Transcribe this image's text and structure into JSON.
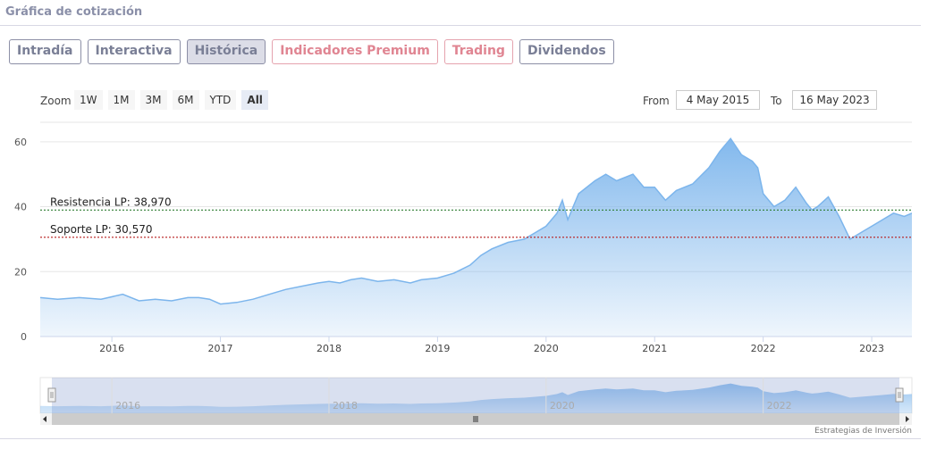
{
  "header": {
    "title": "Gráfica de cotización"
  },
  "tabs": [
    {
      "label": "Intradía",
      "style": "normal"
    },
    {
      "label": "Interactiva",
      "style": "normal"
    },
    {
      "label": "Histórica",
      "style": "active"
    },
    {
      "label": "Indicadores Premium",
      "style": "premium"
    },
    {
      "label": "Trading",
      "style": "premium"
    },
    {
      "label": "Dividendos",
      "style": "normal"
    }
  ],
  "range_selector": {
    "zoom_label": "Zoom",
    "buttons": [
      "1W",
      "1M",
      "3M",
      "6M",
      "YTD",
      "All"
    ],
    "selected": "All",
    "from_label": "From",
    "from_value": "4 May 2015",
    "to_label": "To",
    "to_value": "16 May 2023"
  },
  "footer": {
    "credit": "Estrategias de Inversión"
  },
  "colors": {
    "area_line": "#7cb5ec",
    "resistance_line": "#2e7d32",
    "support_line": "#b71c1c",
    "tab_border": "#8c8fa6",
    "tab_premium": "#e08592"
  },
  "chart_data": {
    "type": "area",
    "title": "",
    "xlabel": "",
    "ylabel": "",
    "x_range": [
      2015.34,
      2023.37
    ],
    "ylim": [
      0,
      66
    ],
    "yticks": [
      0,
      20,
      40,
      60
    ],
    "xticks": [
      2016,
      2017,
      2018,
      2019,
      2020,
      2021,
      2022,
      2023
    ],
    "navigator_ticks": [
      2016,
      2018,
      2020,
      2022
    ],
    "grid": true,
    "series": [
      {
        "x": [
          2015.34,
          2015.5,
          2015.7,
          2015.9,
          2016.1,
          2016.25,
          2016.4,
          2016.55,
          2016.7,
          2016.8,
          2016.9,
          2017.0,
          2017.15,
          2017.3,
          2017.45,
          2017.6,
          2017.75,
          2017.9,
          2018.0,
          2018.1,
          2018.2,
          2018.3,
          2018.45,
          2018.6,
          2018.75,
          2018.85,
          2019.0,
          2019.15,
          2019.3,
          2019.4,
          2019.5,
          2019.65,
          2019.8,
          2019.9,
          2020.0,
          2020.1,
          2020.15,
          2020.2,
          2020.3,
          2020.45,
          2020.55,
          2020.65,
          2020.8,
          2020.9,
          2021.0,
          2021.1,
          2021.2,
          2021.35,
          2021.5,
          2021.6,
          2021.7,
          2021.8,
          2021.9,
          2021.95,
          2022.0,
          2022.1,
          2022.2,
          2022.3,
          2022.4,
          2022.45,
          2022.5,
          2022.6,
          2022.7,
          2022.8,
          2022.9,
          2023.0,
          2023.1,
          2023.2,
          2023.3,
          2023.37
        ],
        "y": [
          12,
          11.5,
          12,
          11.5,
          13,
          11,
          11.5,
          11,
          12,
          12,
          11.5,
          10,
          10.5,
          11.5,
          13,
          14.5,
          15.5,
          16.5,
          17,
          16.5,
          17.5,
          18,
          17,
          17.5,
          16.5,
          17.5,
          18,
          19.5,
          22,
          25,
          27,
          29,
          30,
          32,
          34,
          38,
          42,
          36,
          44,
          48,
          50,
          48,
          50,
          46,
          46,
          42,
          45,
          47,
          52,
          57,
          61,
          56,
          54,
          52,
          44,
          40,
          42,
          46,
          41,
          39,
          40,
          43,
          37,
          30,
          32,
          34,
          36,
          38,
          37,
          38
        ]
      }
    ],
    "annotations": [
      {
        "label": "Resistencia LP: 38,970",
        "value": 38.97
      },
      {
        "label": "Soporte LP: 30,570",
        "value": 30.57
      }
    ]
  }
}
